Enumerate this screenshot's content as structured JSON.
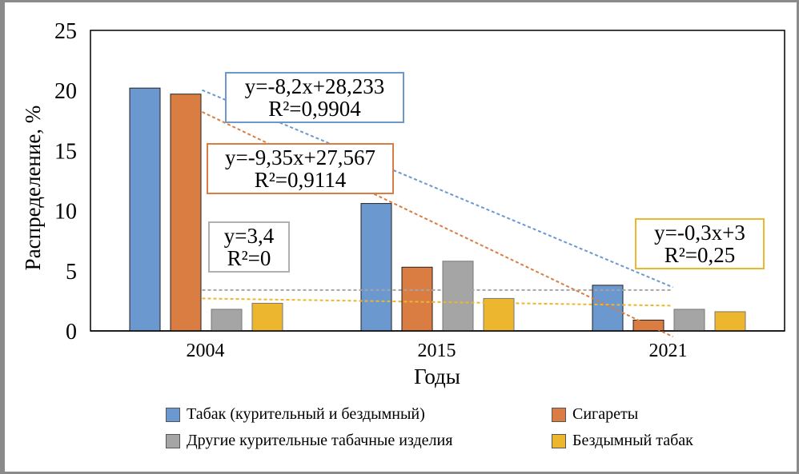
{
  "chart_data": {
    "type": "bar",
    "title": "",
    "xlabel": "Годы",
    "ylabel": "Распределение, %",
    "ylim": [
      0,
      25
    ],
    "yticks": [
      "0",
      "5",
      "10",
      "15",
      "20",
      "25"
    ],
    "categories": [
      "2004",
      "2015",
      "2021"
    ],
    "series": [
      {
        "name": "Табак (курительный и бездымный)",
        "color": "#6a98cf",
        "values": [
          20.2,
          10.6,
          3.8
        ]
      },
      {
        "name": "Сигареты",
        "color": "#d97d42",
        "values": [
          19.7,
          5.3,
          0.9
        ]
      },
      {
        "name": "Другие курительные табачные изделия",
        "color": "#a5a5a5",
        "values": [
          1.8,
          5.8,
          1.8
        ]
      },
      {
        "name": "Бездымный табак",
        "color": "#ecb72f",
        "values": [
          2.3,
          2.7,
          1.6
        ]
      }
    ],
    "trendlines": [
      {
        "series": 0,
        "slope": -8.2,
        "intercept": 28.233,
        "equation": "y=-8,2x+28,233",
        "r2": "R²=0,9904"
      },
      {
        "series": 1,
        "slope": -9.35,
        "intercept": 27.567,
        "equation": "y=-9,35x+27,567",
        "r2": "R²=0,9114"
      },
      {
        "series": 2,
        "slope": 0,
        "intercept": 3.4,
        "equation": "y=3,4",
        "r2": "R²=0"
      },
      {
        "series": 3,
        "slope": -0.3,
        "intercept": 3,
        "equation": "y=-0,3x+3",
        "r2": "R²=0,25"
      }
    ],
    "legend_position": "bottom"
  }
}
